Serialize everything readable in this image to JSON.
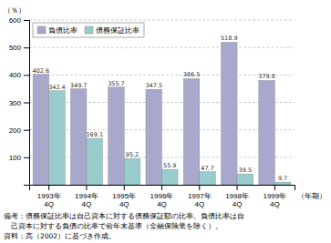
{
  "chart_data": {
    "type": "bar",
    "categories": [
      "1993年\n4Q",
      "1994年\n4Q",
      "1995年\n4Q",
      "1996年\n4Q",
      "1997年\n4Q",
      "1998年\n4Q",
      "1999年\n4Q"
    ],
    "series": [
      {
        "name": "負債比率",
        "color": "#a8a8cc",
        "values": [
          402.6,
          349.7,
          355.7,
          347.5,
          386.5,
          518.9,
          379.8
        ]
      },
      {
        "name": "債務保証比率",
        "color": "#99cccc",
        "values": [
          342.4,
          169.1,
          95.2,
          55.9,
          47.7,
          39.5,
          9.7
        ]
      }
    ],
    "ylabel": "（％）",
    "xlabel": "（年期）",
    "annotations": [
      "備考：債務保証比率は自己資本に対する債務保証額の比率。負債比率は自",
      "　己資本に対する負債の比率で前年末基準（金融保険業を除く）。",
      "資料：高（2002）に基づき作成。"
    ],
    "ylim": [
      0,
      600
    ],
    "yticks": [
      100,
      200,
      300,
      400,
      500,
      600
    ],
    "grid": true,
    "legend": "upper left",
    "data_labels": true
  }
}
